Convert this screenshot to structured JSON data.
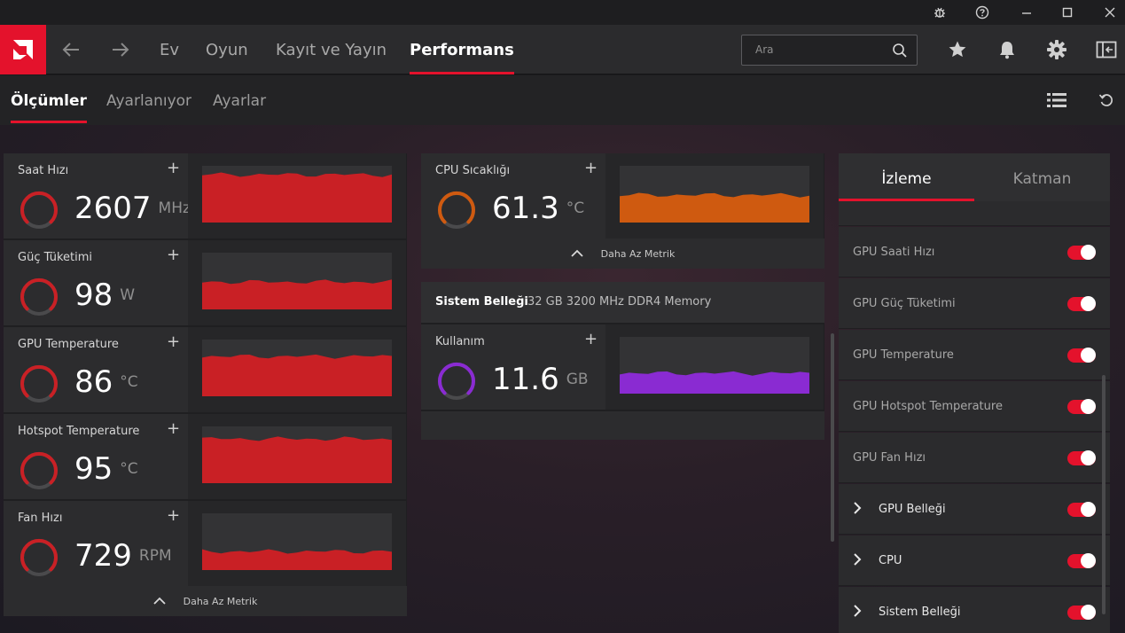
{
  "nav": {
    "items": [
      "Ev",
      "Oyun",
      "Kayıt ve Yayın",
      "Performans"
    ],
    "search_placeholder": "Ara"
  },
  "subnav": {
    "items": [
      "Ölçümler",
      "Ayarlanıyor",
      "Ayarlar"
    ]
  },
  "gpu_metrics": [
    {
      "label": "Saat Hızı",
      "value": "2607",
      "unit": "MHz",
      "color": "#c92025",
      "level": 0.85
    },
    {
      "label": "Güç Tüketimi",
      "value": "98",
      "unit": "W",
      "color": "#c92025",
      "level": 0.48
    },
    {
      "label": "GPU Temperature",
      "value": "86",
      "unit": "°C",
      "color": "#c92025",
      "level": 0.7
    },
    {
      "label": "Hotspot Temperature",
      "value": "95",
      "unit": "°C",
      "color": "#c92025",
      "level": 0.78
    },
    {
      "label": "Fan Hızı",
      "value": "729",
      "unit": "RPM",
      "color": "#c92025",
      "level": 0.33
    }
  ],
  "less_metrics_label": "Daha Az Metrik",
  "cpu_metric": {
    "label": "CPU Sıcaklığı",
    "value": "61.3",
    "unit": "°C",
    "color": "#cf5a10",
    "level": 0.48
  },
  "memory": {
    "title": "Sistem Belleği",
    "description": "32 GB 3200 MHz DDR4 Memory",
    "metric": {
      "label": "Kullanım",
      "value": "11.6",
      "unit": "GB",
      "color": "#8a2bd2",
      "level": 0.36
    }
  },
  "right_panel": {
    "tabs": [
      "İzleme",
      "Katman"
    ],
    "rows": [
      {
        "label": "GPU Saati Hızı",
        "expandable": false,
        "on": true
      },
      {
        "label": "GPU Güç Tüketimi",
        "expandable": false,
        "on": true
      },
      {
        "label": "GPU Temperature",
        "expandable": false,
        "on": true
      },
      {
        "label": "GPU Hotspot Temperature",
        "expandable": false,
        "on": true
      },
      {
        "label": "GPU Fan Hızı",
        "expandable": false,
        "on": true
      },
      {
        "label": "GPU Belleği",
        "expandable": true,
        "on": true
      },
      {
        "label": "CPU",
        "expandable": true,
        "on": true
      },
      {
        "label": "Sistem Belleği",
        "expandable": true,
        "on": true
      }
    ]
  },
  "colors": {
    "accent": "#e4122c",
    "gpu_chart": "#c92025",
    "cpu_chart": "#cf5a10",
    "memory_chart": "#8a2bd2"
  }
}
